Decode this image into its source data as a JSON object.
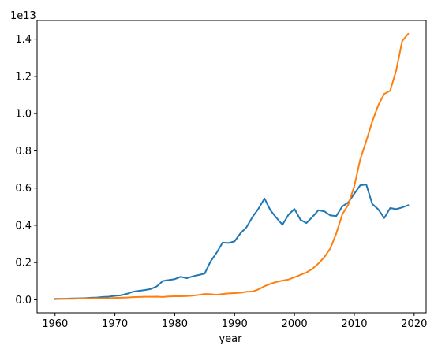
{
  "chart_data": {
    "type": "line",
    "title": "",
    "xlabel": "year",
    "ylabel": "",
    "offset_text": "1e13",
    "xlim": [
      1957.0,
      2022.0
    ],
    "ylim": [
      -0.07,
      1.5
    ],
    "xticks": [
      1960,
      1970,
      1980,
      1990,
      2000,
      2010,
      2020
    ],
    "xtick_labels": [
      "1960",
      "1970",
      "1980",
      "1990",
      "2000",
      "2010",
      "2020"
    ],
    "yticks": [
      0.0,
      0.2,
      0.4,
      0.6,
      0.8,
      1.0,
      1.2,
      1.4
    ],
    "ytick_labels": [
      "0.0",
      "0.2",
      "0.4",
      "0.6",
      "0.8",
      "1.0",
      "1.2",
      "1.4"
    ],
    "grid": false,
    "legend": "none",
    "x": [
      1960,
      1961,
      1962,
      1963,
      1964,
      1965,
      1966,
      1967,
      1968,
      1969,
      1970,
      1971,
      1972,
      1973,
      1974,
      1975,
      1976,
      1977,
      1978,
      1979,
      1980,
      1981,
      1982,
      1983,
      1984,
      1985,
      1986,
      1987,
      1988,
      1989,
      1990,
      1991,
      1992,
      1993,
      1994,
      1995,
      1996,
      1997,
      1998,
      1999,
      2000,
      2001,
      2002,
      2003,
      2004,
      2005,
      2006,
      2007,
      2008,
      2009,
      2010,
      2011,
      2012,
      2013,
      2014,
      2015,
      2016,
      2017,
      2018,
      2019
    ],
    "series": [
      {
        "color": "#1f77b4",
        "values": [
          0.004,
          0.005,
          0.006,
          0.007,
          0.008,
          0.009,
          0.011,
          0.012,
          0.015,
          0.017,
          0.021,
          0.024,
          0.032,
          0.043,
          0.048,
          0.052,
          0.058,
          0.072,
          0.101,
          0.106,
          0.111,
          0.124,
          0.116,
          0.126,
          0.133,
          0.141,
          0.207,
          0.253,
          0.307,
          0.305,
          0.314,
          0.358,
          0.39,
          0.445,
          0.49,
          0.544,
          0.48,
          0.44,
          0.403,
          0.457,
          0.488,
          0.43,
          0.412,
          0.445,
          0.481,
          0.475,
          0.453,
          0.45,
          0.502,
          0.523,
          0.57,
          0.615,
          0.619,
          0.515,
          0.486,
          0.439,
          0.493,
          0.487,
          0.496,
          0.508
        ]
      },
      {
        "color": "#ff7f0e",
        "values": [
          0.006,
          0.005,
          0.005,
          0.005,
          0.006,
          0.007,
          0.008,
          0.008,
          0.008,
          0.009,
          0.01,
          0.011,
          0.012,
          0.014,
          0.015,
          0.016,
          0.016,
          0.017,
          0.015,
          0.018,
          0.019,
          0.019,
          0.02,
          0.022,
          0.026,
          0.031,
          0.03,
          0.027,
          0.031,
          0.034,
          0.036,
          0.038,
          0.043,
          0.044,
          0.056,
          0.073,
          0.086,
          0.096,
          0.103,
          0.109,
          0.121,
          0.134,
          0.147,
          0.166,
          0.195,
          0.229,
          0.276,
          0.357,
          0.459,
          0.511,
          0.61,
          0.755,
          0.853,
          0.957,
          1.044,
          1.106,
          1.123,
          1.231,
          1.389,
          1.428
        ]
      }
    ]
  }
}
